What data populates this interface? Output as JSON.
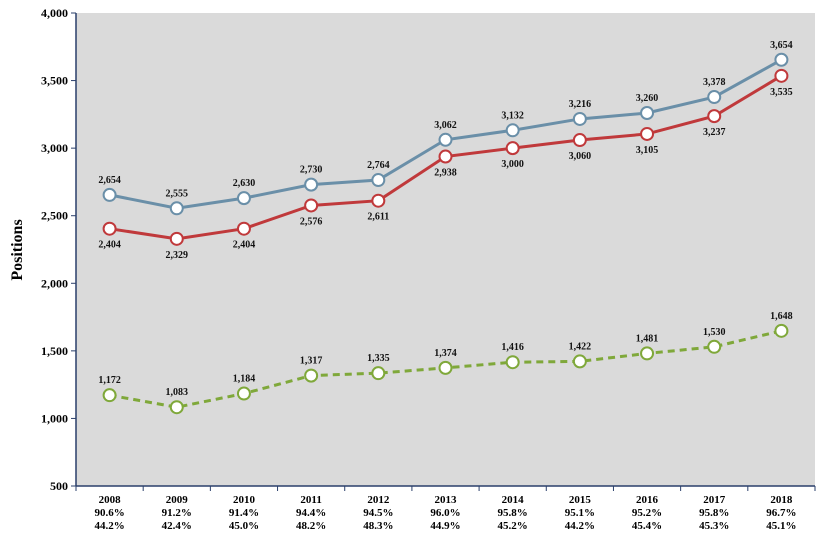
{
  "chart_data": {
    "type": "line",
    "title": "",
    "xlabel": "",
    "ylabel": "Positions",
    "ylim": [
      500,
      4000
    ],
    "yticks": [
      "500",
      "1,000",
      "1,500",
      "2,000",
      "2,500",
      "3,000",
      "3,500",
      "4,000"
    ],
    "grid": false,
    "categories": [
      "2008",
      "2009",
      "2010",
      "2011",
      "2012",
      "2013",
      "2014",
      "2015",
      "2016",
      "2017",
      "2018"
    ],
    "category_sublabels": [
      [
        "90.6%",
        "44.2%"
      ],
      [
        "91.2%",
        "42.4%"
      ],
      [
        "91.4%",
        "45.0%"
      ],
      [
        "94.4%",
        "48.2%"
      ],
      [
        "94.5%",
        "48.3%"
      ],
      [
        "96.0%",
        "44.9%"
      ],
      [
        "95.8%",
        "45.2%"
      ],
      [
        "95.1%",
        "44.2%"
      ],
      [
        "95.2%",
        "45.4%"
      ],
      [
        "95.8%",
        "45.3%"
      ],
      [
        "96.7%",
        "45.1%"
      ]
    ],
    "series": [
      {
        "values": [
          2654,
          2555,
          2630,
          2730,
          2764,
          3062,
          3132,
          3216,
          3260,
          3378,
          3654
        ],
        "labels": [
          "2,654",
          "2,555",
          "2,630",
          "2,730",
          "2,764",
          "3,062",
          "3,132",
          "3,216",
          "3,260",
          "3,378",
          "3,654"
        ],
        "color": "#6a8fa8",
        "dashed": false,
        "label_position": "above"
      },
      {
        "values": [
          2404,
          2329,
          2404,
          2576,
          2611,
          2938,
          3000,
          3060,
          3105,
          3237,
          3535
        ],
        "labels": [
          "2,404",
          "2,329",
          "2,404",
          "2,576",
          "2,611",
          "2,938",
          "3,000",
          "3,060",
          "3,105",
          "3,237",
          "3,535"
        ],
        "color": "#c0393b",
        "dashed": false,
        "label_position": "below"
      },
      {
        "values": [
          1172,
          1083,
          1184,
          1317,
          1335,
          1374,
          1416,
          1422,
          1481,
          1530,
          1648
        ],
        "labels": [
          "1,172",
          "1,083",
          "1,184",
          "1,317",
          "1,335",
          "1,374",
          "1,416",
          "1,422",
          "1,481",
          "1,530",
          "1,648"
        ],
        "color": "#7fa83a",
        "dashed": true,
        "label_position": "above"
      }
    ],
    "colors": {
      "plot_background": "#dadada",
      "axis": "#2a3f6b",
      "marker_fill": "#ffffff"
    }
  }
}
